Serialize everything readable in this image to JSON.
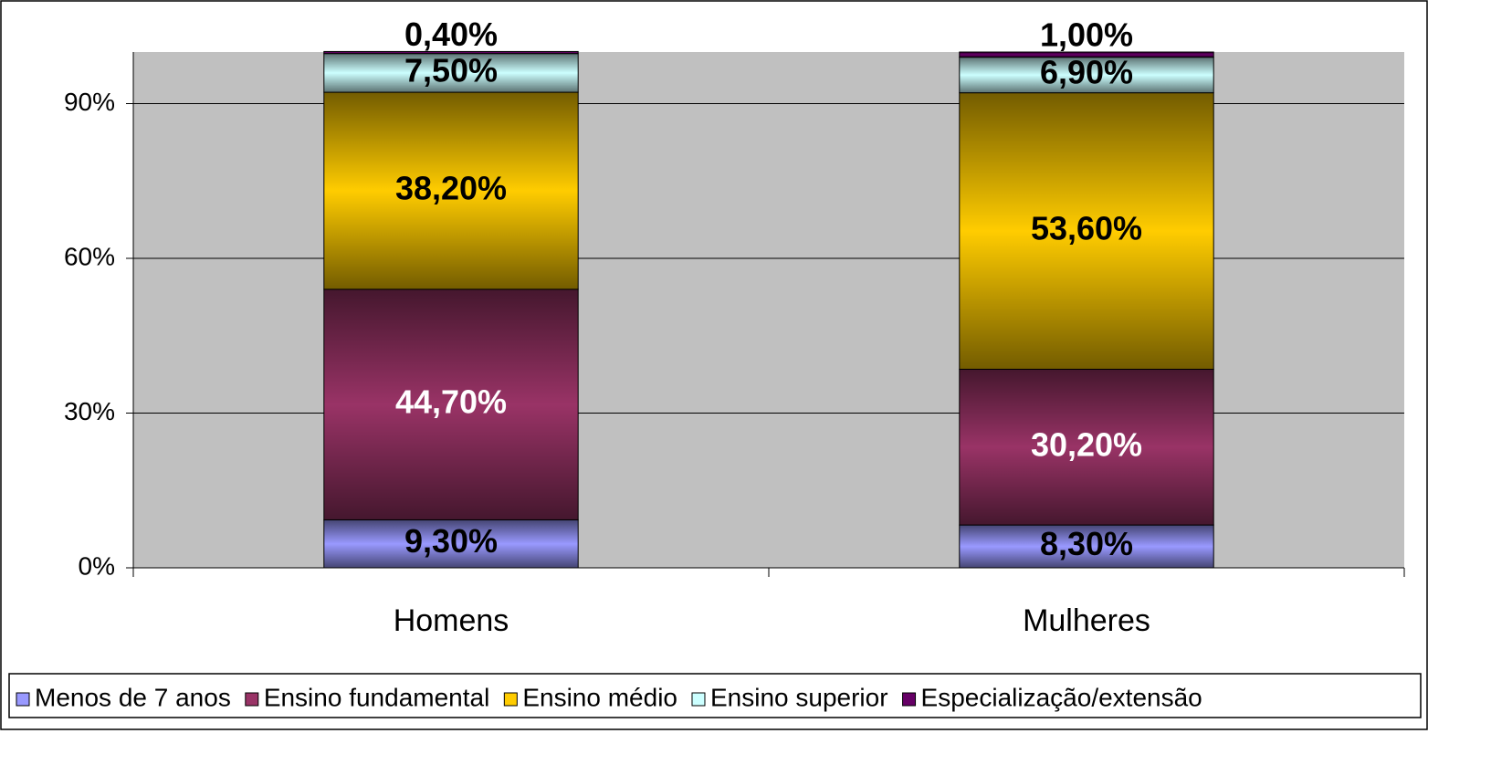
{
  "chart_data": {
    "type": "stacked_bar",
    "categories": [
      "Homens",
      "Mulheres"
    ],
    "series": [
      {
        "name": "Menos de 7 anos",
        "color": "#9999ff",
        "values": [
          9.3,
          8.3
        ],
        "value_labels": [
          "9,30%",
          "8,30%"
        ]
      },
      {
        "name": "Ensino fundamental",
        "color": "#993366",
        "values": [
          44.7,
          30.2
        ],
        "value_labels": [
          "44,70%",
          "30,20%"
        ]
      },
      {
        "name": "Ensino médio",
        "color": "#ffcc00",
        "values": [
          38.2,
          53.6
        ],
        "value_labels": [
          "38,20%",
          "53,60%"
        ]
      },
      {
        "name": "Ensino superior",
        "color": "#ccffff",
        "values": [
          7.5,
          6.9
        ],
        "value_labels": [
          "7,50%",
          "6,90%"
        ]
      },
      {
        "name": "Especialização/extensão",
        "color": "#660066",
        "values": [
          0.4,
          1.0
        ],
        "value_labels": [
          "0,40%",
          "1,00%"
        ]
      }
    ],
    "ylim": [
      0,
      100
    ],
    "yticks": [
      {
        "value": 0,
        "label": "0%"
      },
      {
        "value": 30,
        "label": "30%"
      },
      {
        "value": 60,
        "label": "60%"
      },
      {
        "value": 90,
        "label": "90%"
      }
    ],
    "grid": true,
    "legend": "bottom"
  }
}
